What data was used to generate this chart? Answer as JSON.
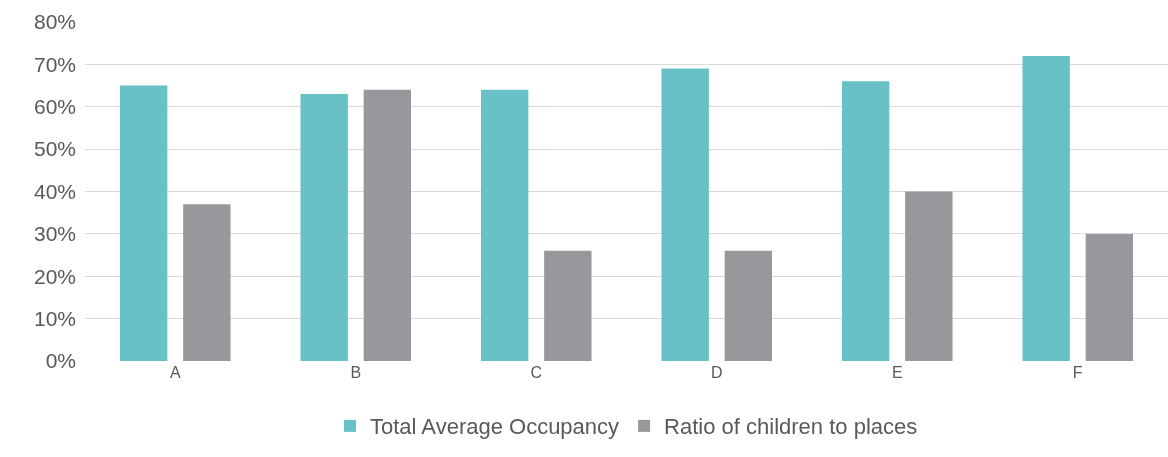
{
  "chart_data": {
    "type": "bar",
    "categories": [
      "A",
      "B",
      "C",
      "D",
      "E",
      "F"
    ],
    "series": [
      {
        "name": "Total Average Occupancy",
        "color": "#67c1c7",
        "values": [
          65,
          63,
          64,
          69,
          66,
          72
        ]
      },
      {
        "name": "Ratio of children to places",
        "color": "#98989c",
        "values": [
          37,
          64,
          26,
          26,
          40,
          30
        ]
      }
    ],
    "ylim": [
      0,
      80
    ],
    "yticks": [
      {
        "value": 0,
        "label": "0%"
      },
      {
        "value": 10,
        "label": "10%"
      },
      {
        "value": 20,
        "label": "20%"
      },
      {
        "value": 30,
        "label": "30%"
      },
      {
        "value": 40,
        "label": "40%"
      },
      {
        "value": 50,
        "label": "50%"
      },
      {
        "value": 60,
        "label": "60%"
      },
      {
        "value": 70,
        "label": "70%"
      },
      {
        "value": 80,
        "label": "80%"
      }
    ],
    "grid": "y",
    "legend": "bottom"
  }
}
